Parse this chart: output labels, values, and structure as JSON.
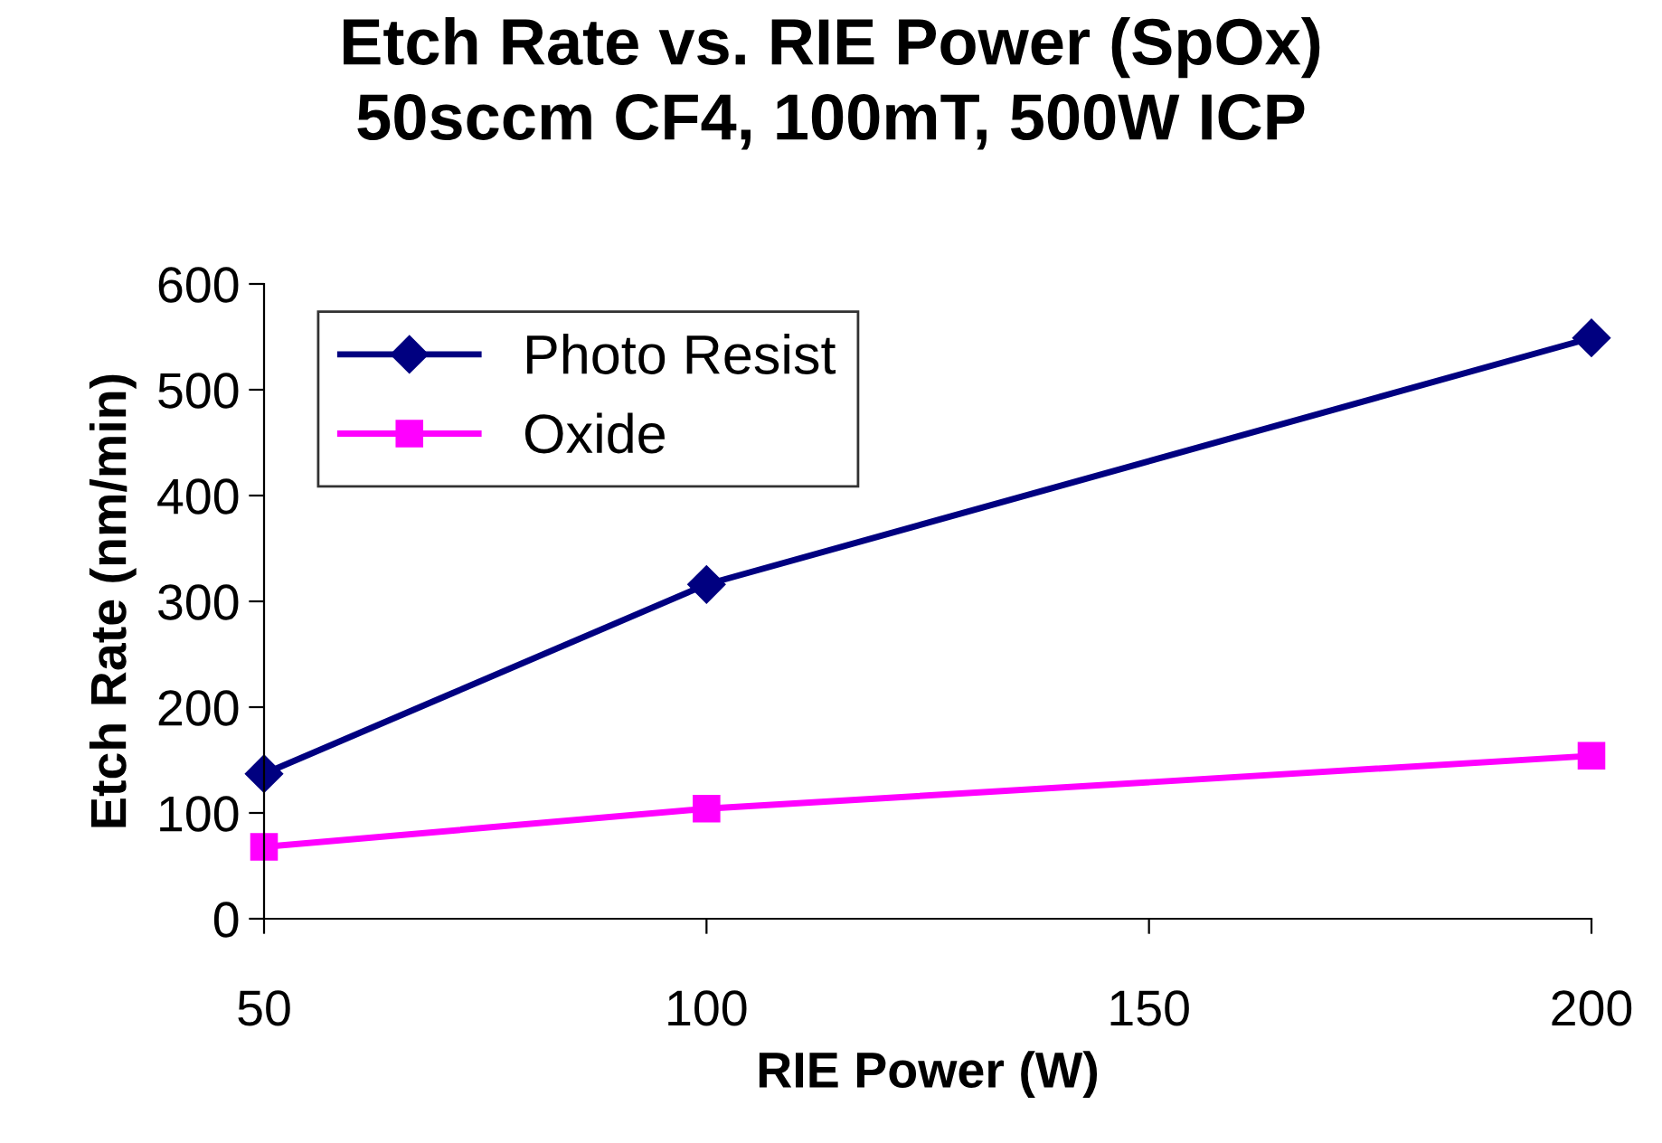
{
  "chart_data": {
    "type": "line",
    "title": "Etch Rate vs. RIE Power (SpOx)\n50sccm CF4, 100mT, 500W ICP",
    "xlabel": "RIE Power (W)",
    "ylabel": "Etch Rate (nm/min)",
    "x": [
      50,
      100,
      200
    ],
    "series": [
      {
        "name": "Photo Resist",
        "color": "#000080",
        "marker": "diamond",
        "values": [
          137,
          316,
          549
        ]
      },
      {
        "name": "Oxide",
        "color": "#ff00ff",
        "marker": "square",
        "values": [
          68,
          104,
          154
        ]
      }
    ],
    "xlim": [
      50,
      200
    ],
    "xticks": [
      50,
      100,
      150,
      200
    ],
    "ylim": [
      0,
      600
    ],
    "yticks": [
      0,
      100,
      200,
      300,
      400,
      500,
      600
    ],
    "grid": false,
    "legend": "top left",
    "line_style": "solid"
  }
}
